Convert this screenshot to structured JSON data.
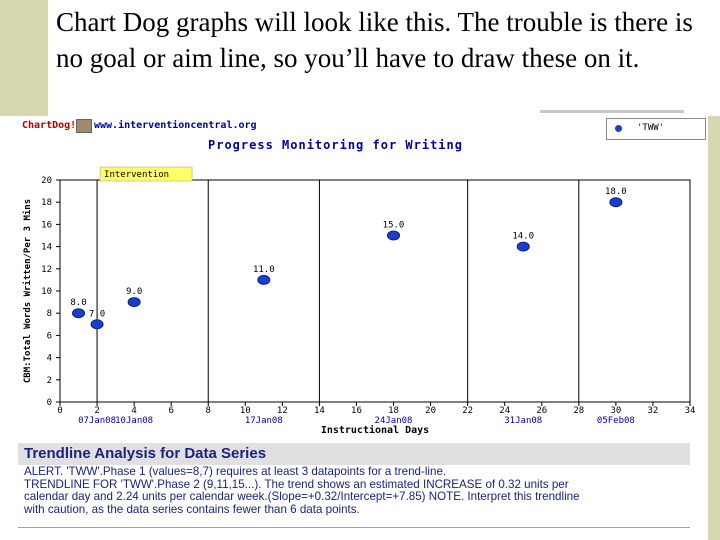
{
  "slide": {
    "text": "Chart Dog graphs will look like this.  The trouble is there is no goal or aim line, so you’ll have to draw these on it."
  },
  "app": {
    "brand": "ChartDog!",
    "site": "www.interventioncentral.org",
    "legend_label": "'TWW'"
  },
  "chart_data": {
    "type": "scatter",
    "title": "Progress Monitoring for Writing",
    "xlabel": "Instructional Days",
    "ylabel": "CBM:Total Words Written/Per 3 Mins",
    "xlim": [
      0,
      34
    ],
    "ylim": [
      0,
      20
    ],
    "x_ticks": [
      "0",
      "2",
      "4",
      "6",
      "8",
      "10",
      "12",
      "14",
      "16",
      "18",
      "20",
      "22",
      "24",
      "26",
      "28",
      "30",
      "32",
      "34"
    ],
    "y_ticks": [
      "0",
      "2",
      "4",
      "6",
      "8",
      "10",
      "12",
      "14",
      "16",
      "18",
      "20"
    ],
    "date_labels": [
      {
        "x": 2,
        "label": "07Jan08"
      },
      {
        "x": 4,
        "label": "10Jan08"
      },
      {
        "x": 11,
        "label": "17Jan08"
      },
      {
        "x": 18,
        "label": "24Jan08"
      },
      {
        "x": 25,
        "label": "31Jan08"
      },
      {
        "x": 30,
        "label": "05Feb08"
      }
    ],
    "phase_lines_x": [
      2,
      8,
      14,
      22,
      28
    ],
    "annotation": "Intervention",
    "series": [
      {
        "name": "'TWW'",
        "color": "#1a3fd0",
        "points": [
          {
            "x": 1,
            "y": 8.0,
            "label": "8.0"
          },
          {
            "x": 2,
            "y": 7.0,
            "label": "7.0"
          },
          {
            "x": 4,
            "y": 9.0,
            "label": "9.0"
          },
          {
            "x": 11,
            "y": 11.0,
            "label": "11.0"
          },
          {
            "x": 18,
            "y": 15.0,
            "label": "15.0"
          },
          {
            "x": 25,
            "y": 14.0,
            "label": "14.0"
          },
          {
            "x": 30,
            "y": 18.0,
            "label": "18.0"
          }
        ]
      }
    ],
    "grid": false
  },
  "trendline": {
    "header": "Trendline Analysis for Data Series",
    "lines": [
      "ALERT. 'TWW'.Phase 1 (values=8,7) requires at least 3 datapoints for a trend-line.",
      "TRENDLINE FOR 'TWW'.Phase 2 (9,11,15...). The trend shows an estimated INCREASE of 0.32 units per",
      "calendar day and 2.24 units per calendar week.(Slope=+0.32/Intercept=+7.85) NOTE. Interpret this trendline",
      "with caution, as the data series contains fewer than 6 data points."
    ]
  }
}
